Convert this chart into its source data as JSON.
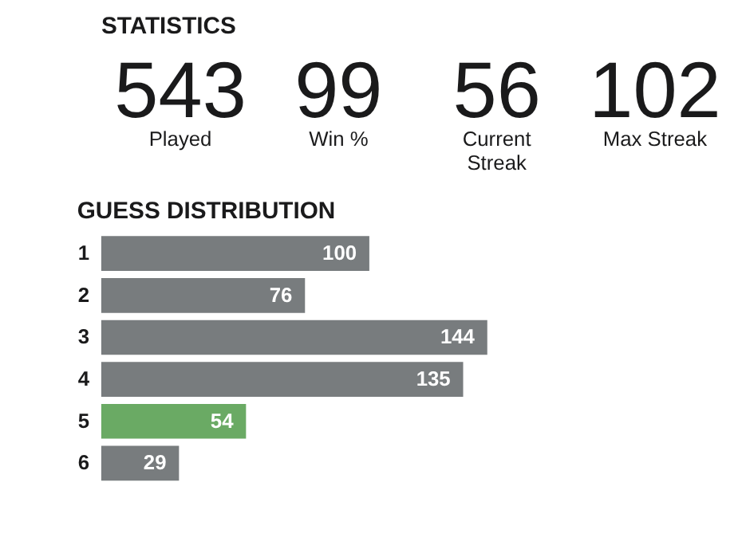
{
  "chart_data": [
    {
      "type": "other",
      "title": "STATISTICS",
      "categories": [
        "Played",
        "Win %",
        "Current\nStreak",
        "Max Streak"
      ],
      "values": [
        543,
        99,
        56,
        102
      ],
      "data_labels": true
    },
    {
      "type": "bar",
      "orientation": "horizontal",
      "title": "GUESS DISTRIBUTION",
      "categories": [
        "1",
        "2",
        "3",
        "4",
        "5",
        "6"
      ],
      "values": [
        100,
        76,
        144,
        135,
        54,
        29
      ],
      "colors": [
        "#787c7e",
        "#787c7e",
        "#787c7e",
        "#787c7e",
        "#6aaa64",
        "#787c7e"
      ],
      "data_labels": true
    }
  ]
}
